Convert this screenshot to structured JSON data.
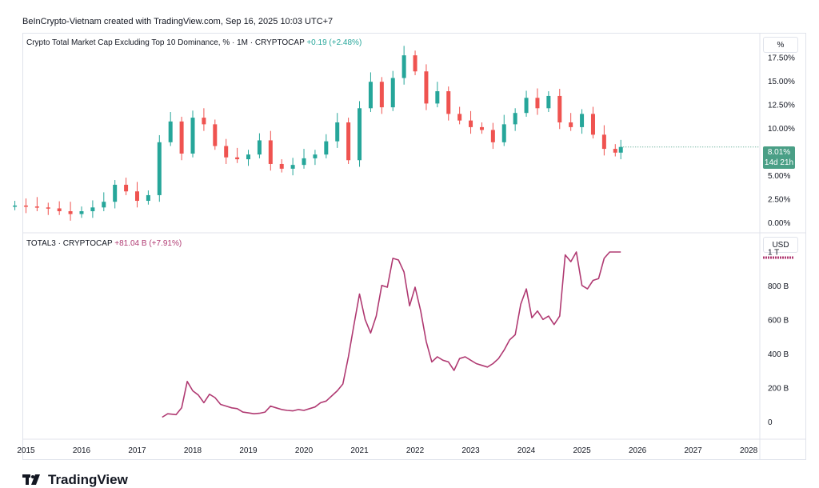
{
  "header": {
    "attribution": "BeInCrypto-Vietnam created with TradingView.com, Sep 16, 2025 10:03 UTC+7"
  },
  "upper_pane": {
    "legend_title": "Crypto Total Market Cap Excluding Top 10 Dominance, % · 1M · CRYPTOCAP",
    "legend_change": "+0.19 (+2.48%)",
    "scale_button": "%",
    "price_tag_value": "8.01%",
    "price_tag_countdown": "14d 21h",
    "colors": {
      "up": "#26a69a",
      "down": "#ef5350",
      "tag": "#4a9f86"
    }
  },
  "lower_pane": {
    "legend_title": "TOTAL3 · CRYPTOCAP",
    "legend_change": "+81.04 B (+7.91%)",
    "scale_button": "USD",
    "colors": {
      "line": "#b03a72"
    }
  },
  "watermark": {
    "text": "TradingView",
    "icon": "tradingview-logo-icon"
  },
  "chart_data": [
    {
      "type": "candlestick",
      "title": "Crypto Total Market Cap Excluding Top 10 Dominance, % · 1M · CRYPTOCAP",
      "ylabel": "%",
      "ylim": [
        -1,
        20
      ],
      "yticks": [
        "0.00%",
        "2.50%",
        "5.00%",
        "7.50%",
        "10.00%",
        "12.50%",
        "15.00%",
        "17.50%"
      ],
      "last_value": "8.01%",
      "series": [
        {
          "name": "",
          "t": [
            2014.8,
            2015.0,
            2015.2,
            2015.4,
            2015.6,
            2015.8,
            2016.0,
            2016.2,
            2016.4,
            2016.6,
            2016.8,
            2017.0,
            2017.2,
            2017.4,
            2017.6,
            2017.8,
            2018.0,
            2018.2,
            2018.4,
            2018.6,
            2018.8,
            2019.0,
            2019.2,
            2019.4,
            2019.6,
            2019.8,
            2020.0,
            2020.2,
            2020.4,
            2020.6,
            2020.8,
            2021.0,
            2021.2,
            2021.4,
            2021.6,
            2021.8,
            2022.0,
            2022.2,
            2022.4,
            2022.6,
            2022.8,
            2023.0,
            2023.2,
            2023.4,
            2023.6,
            2023.8,
            2024.0,
            2024.2,
            2024.4,
            2024.6,
            2024.8,
            2025.0,
            2025.2,
            2025.4,
            2025.6,
            2025.7
          ],
          "v": [
            1.8,
            1.7,
            1.6,
            1.5,
            1.2,
            0.9,
            1.2,
            1.6,
            2.2,
            4.0,
            3.3,
            2.3,
            2.9,
            8.5,
            10.7,
            7.3,
            11.1,
            10.4,
            8.1,
            6.9,
            6.7,
            7.2,
            8.7,
            6.2,
            5.7,
            6.1,
            6.8,
            7.2,
            8.6,
            10.6,
            6.6,
            12.1,
            14.9,
            12.2,
            15.3,
            17.7,
            16.0,
            12.6,
            13.9,
            11.5,
            10.8,
            10.1,
            9.8,
            8.5,
            10.4,
            11.6,
            13.2,
            12.1,
            13.4,
            10.6,
            10.1,
            11.5,
            9.3,
            7.8,
            7.4,
            8.0
          ]
        }
      ]
    },
    {
      "type": "line",
      "title": "TOTAL3 · CRYPTOCAP",
      "ylabel": "USD",
      "ylim": [
        -100,
        1110
      ],
      "yticks": [
        "0",
        "200 B",
        "400 B",
        "600 B",
        "800 B",
        "1 T"
      ],
      "xticks": [
        "2015",
        "2016",
        "2017",
        "2018",
        "2019",
        "2020",
        "2021",
        "2022",
        "2023",
        "2024",
        "2025",
        "2026",
        "2027",
        "2028"
      ],
      "xlim": [
        2014.95,
        2028.2
      ],
      "series": [
        {
          "name": "",
          "t": [
            2017.45,
            2017.55,
            2017.7,
            2017.8,
            2017.9,
            2018.0,
            2018.1,
            2018.2,
            2018.3,
            2018.4,
            2018.5,
            2018.6,
            2018.7,
            2018.8,
            2018.9,
            2019.0,
            2019.1,
            2019.2,
            2019.3,
            2019.4,
            2019.5,
            2019.6,
            2019.7,
            2019.8,
            2019.9,
            2020.0,
            2020.1,
            2020.2,
            2020.3,
            2020.4,
            2020.5,
            2020.6,
            2020.7,
            2020.8,
            2020.9,
            2021.0,
            2021.1,
            2021.2,
            2021.3,
            2021.4,
            2021.5,
            2021.6,
            2021.7,
            2021.8,
            2021.9,
            2022.0,
            2022.1,
            2022.2,
            2022.3,
            2022.4,
            2022.5,
            2022.6,
            2022.7,
            2022.8,
            2022.9,
            2023.0,
            2023.1,
            2023.2,
            2023.3,
            2023.4,
            2023.5,
            2023.6,
            2023.7,
            2023.8,
            2023.9,
            2024.0,
            2024.1,
            2024.2,
            2024.3,
            2024.4,
            2024.5,
            2024.6,
            2024.7,
            2024.8,
            2024.9,
            2025.0,
            2025.1,
            2025.2,
            2025.3,
            2025.4,
            2025.5,
            2025.6,
            2025.7
          ],
          "v": [
            25,
            45,
            40,
            80,
            235,
            180,
            155,
            110,
            160,
            140,
            100,
            90,
            80,
            75,
            55,
            50,
            45,
            48,
            55,
            90,
            80,
            70,
            65,
            62,
            70,
            65,
            75,
            85,
            110,
            120,
            150,
            180,
            220,
            380,
            570,
            750,
            600,
            520,
            620,
            800,
            790,
            960,
            950,
            880,
            680,
            790,
            650,
            470,
            350,
            380,
            360,
            350,
            300,
            370,
            380,
            360,
            340,
            330,
            320,
            340,
            370,
            420,
            480,
            510,
            690,
            780,
            610,
            650,
            600,
            620,
            570,
            620,
            980,
            940,
            1000,
            800,
            780,
            830,
            840,
            960,
            1010,
            1140,
            1140
          ]
        }
      ]
    }
  ]
}
